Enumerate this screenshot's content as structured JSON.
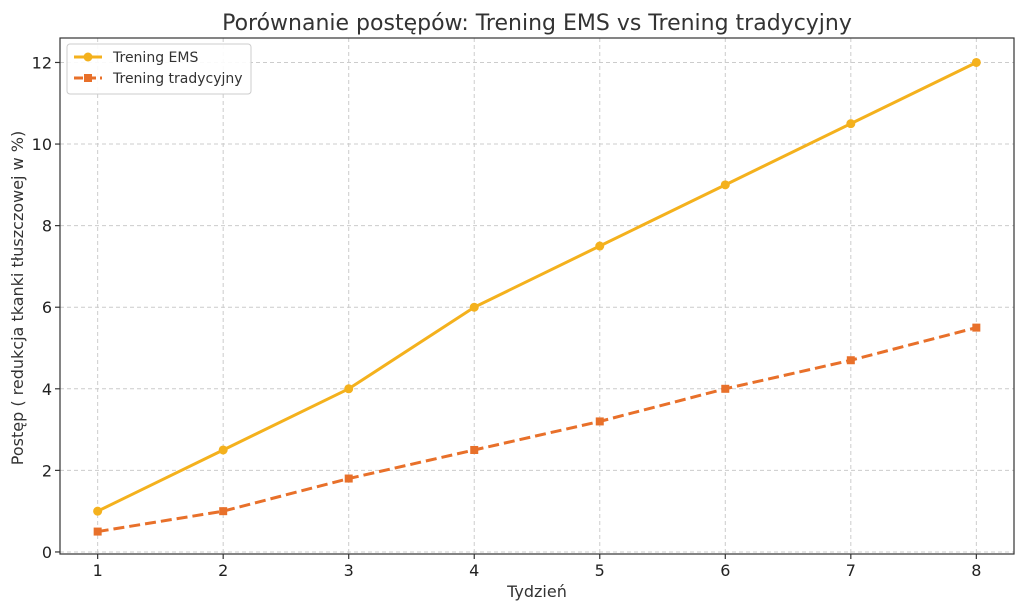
{
  "chart_data": {
    "type": "line",
    "title": "Porównanie postępów: Trening EMS vs Trening tradycyjny",
    "xlabel": "Tydzień",
    "ylabel": "Postęp ( redukcja tkanki tłuszczowej w %)",
    "x": [
      1,
      2,
      3,
      4,
      5,
      6,
      7,
      8
    ],
    "xlim": [
      0.7,
      8.3
    ],
    "ylim": [
      -0.05,
      12.6
    ],
    "xticks": [
      "1",
      "2",
      "3",
      "4",
      "5",
      "6",
      "7",
      "8"
    ],
    "yticks": [
      "0",
      "2",
      "4",
      "6",
      "8",
      "10",
      "12"
    ],
    "grid": true,
    "legend": "top-left",
    "series": [
      {
        "name": "Trening EMS",
        "values": [
          1,
          2.5,
          4,
          6,
          7.5,
          9,
          10.5,
          12
        ],
        "color": "#f4b11d",
        "marker": "circle",
        "line_style": "solid"
      },
      {
        "name": "Trening tradycyjny",
        "values": [
          0.5,
          1,
          1.8,
          2.5,
          3.2,
          4,
          4.7,
          5.5
        ],
        "color": "#e8702a",
        "marker": "square",
        "line_style": "dashed"
      }
    ]
  }
}
